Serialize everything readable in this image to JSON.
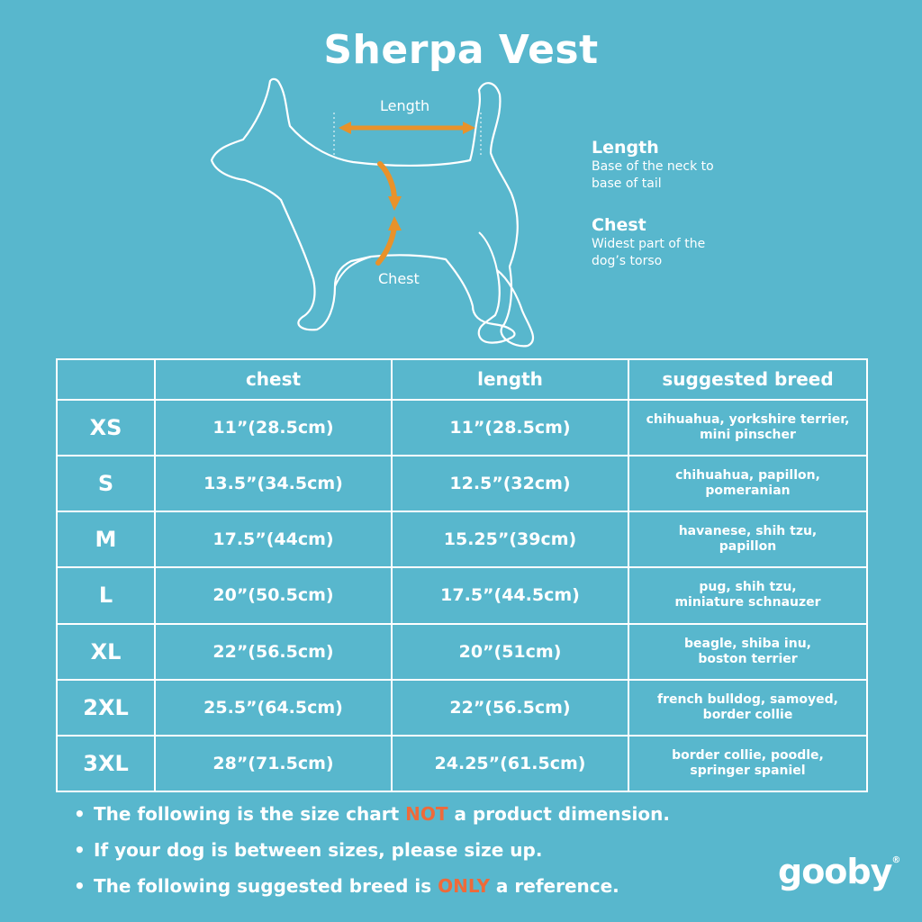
{
  "title": "Sherpa Vest",
  "diagram": {
    "length_label": "Length",
    "chest_label": "Chest",
    "arrow_color": "#e8922a",
    "outline_color": "#ffffff"
  },
  "legend": [
    {
      "heading": "Length",
      "line1": "Base of the neck to",
      "line2": "base of tail"
    },
    {
      "heading": "Chest",
      "line1": "Widest part of the",
      "line2": "dog’s torso"
    }
  ],
  "table": {
    "headers": [
      "",
      "chest",
      "length",
      "suggested breed"
    ],
    "rows": [
      {
        "size": "XS",
        "chest": "11”(28.5cm)",
        "length": "11”(28.5cm)",
        "breed1": "chihuahua, yorkshire terrier,",
        "breed2": "mini pinscher"
      },
      {
        "size": "S",
        "chest": "13.5”(34.5cm)",
        "length": "12.5”(32cm)",
        "breed1": "chihuahua, papillon,",
        "breed2": "pomeranian"
      },
      {
        "size": "M",
        "chest": "17.5”(44cm)",
        "length": "15.25”(39cm)",
        "breed1": "havanese, shih tzu,",
        "breed2": "papillon"
      },
      {
        "size": "L",
        "chest": "20”(50.5cm)",
        "length": "17.5”(44.5cm)",
        "breed1": "pug, shih tzu,",
        "breed2": "miniature schnauzer"
      },
      {
        "size": "XL",
        "chest": "22”(56.5cm)",
        "length": "20”(51cm)",
        "breed1": "beagle, shiba inu,",
        "breed2": "boston terrier"
      },
      {
        "size": "2XL",
        "chest": "25.5”(64.5cm)",
        "length": "22”(56.5cm)",
        "breed1": "french bulldog, samoyed,",
        "breed2": "border collie"
      },
      {
        "size": "3XL",
        "chest": "28”(71.5cm)",
        "length": "24.25”(61.5cm)",
        "breed1": "border collie, poodle,",
        "breed2": "springer spaniel"
      }
    ]
  },
  "notes": [
    {
      "bullet": "•",
      "before": "The following is  the size chart ",
      "highlight": "NOT",
      "after": " a product dimension."
    },
    {
      "bullet": "•",
      "before": "If your dog is between sizes, please size up.",
      "highlight": "",
      "after": ""
    },
    {
      "bullet": "•",
      "before": "The following suggested breed is ",
      "highlight": "ONLY",
      "after": " a reference."
    }
  ],
  "brand": {
    "name": "gooby",
    "mark": "®"
  },
  "colors": {
    "background": "#58b7cd",
    "highlight": "#ee6a3a",
    "text": "#ffffff"
  }
}
